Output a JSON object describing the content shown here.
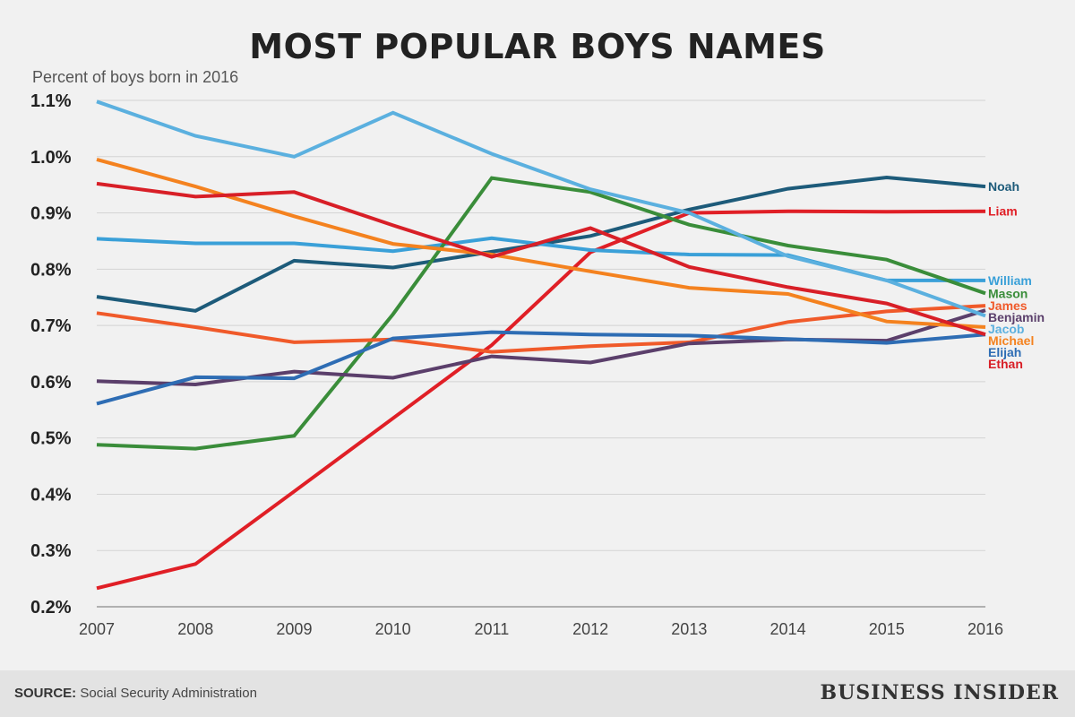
{
  "title": "MOST POPULAR BOYS NAMES",
  "subtitle": "Percent of boys born in 2016",
  "footer": {
    "source_label": "SOURCE:",
    "source_text": "Social Security Administration",
    "brand": "BUSINESS INSIDER"
  },
  "chart_data": {
    "type": "line",
    "title": "MOST POPULAR BOYS NAMES",
    "ylabel": "Percent of boys born in 2016",
    "x": [
      "2007",
      "2008",
      "2009",
      "2010",
      "2011",
      "2012",
      "2013",
      "2014",
      "2015",
      "2016"
    ],
    "ylim": [
      0.2,
      1.1
    ],
    "yticks": [
      0.2,
      0.3,
      0.4,
      0.5,
      0.6,
      0.7,
      0.8,
      0.9,
      1.0,
      1.1
    ],
    "ytick_labels": [
      "0.2%",
      "0.3%",
      "0.4%",
      "0.5%",
      "0.6%",
      "0.7%",
      "0.8%",
      "0.9%",
      "1.0%",
      "1.1%"
    ],
    "grid": "horizontal",
    "legend": "direct labels at right end of lines",
    "series": [
      {
        "name": "Noah",
        "color": "#1d5b7a",
        "values": [
          0.751,
          0.726,
          0.815,
          0.803,
          0.831,
          0.859,
          0.906,
          0.943,
          0.963,
          0.947
        ]
      },
      {
        "name": "Liam",
        "color": "#e01f26",
        "values": [
          0.233,
          0.276,
          0.405,
          0.535,
          0.665,
          0.83,
          0.9,
          0.903,
          0.902,
          0.903
        ]
      },
      {
        "name": "William",
        "color": "#3aa0d8",
        "values": [
          0.854,
          0.846,
          0.846,
          0.832,
          0.855,
          0.834,
          0.826,
          0.825,
          0.78,
          0.78
        ]
      },
      {
        "name": "Mason",
        "color": "#3a8d3a",
        "values": [
          0.488,
          0.481,
          0.504,
          0.72,
          0.962,
          0.937,
          0.879,
          0.842,
          0.817,
          0.757
        ]
      },
      {
        "name": "James",
        "color": "#f05a2a",
        "values": [
          0.722,
          0.697,
          0.67,
          0.675,
          0.653,
          0.663,
          0.67,
          0.706,
          0.725,
          0.735
        ]
      },
      {
        "name": "Benjamin",
        "color": "#5b3f6b",
        "values": [
          0.601,
          0.595,
          0.618,
          0.607,
          0.645,
          0.634,
          0.668,
          0.675,
          0.673,
          0.727
        ]
      },
      {
        "name": "Jacob",
        "color": "#5bb0df",
        "values": [
          1.098,
          1.037,
          1.0,
          1.078,
          1.005,
          0.942,
          0.9,
          0.823,
          0.78,
          0.717
        ]
      },
      {
        "name": "Michael",
        "color": "#f4821f",
        "values": [
          0.995,
          0.947,
          0.894,
          0.845,
          0.826,
          0.796,
          0.767,
          0.756,
          0.707,
          0.697
        ]
      },
      {
        "name": "Elijah",
        "color": "#2e6db4",
        "values": [
          0.561,
          0.608,
          0.606,
          0.677,
          0.688,
          0.684,
          0.682,
          0.676,
          0.669,
          0.684
        ]
      },
      {
        "name": "Ethan",
        "color": "#d81f27",
        "values": [
          0.952,
          0.929,
          0.937,
          0.878,
          0.822,
          0.873,
          0.804,
          0.768,
          0.739,
          0.684
        ]
      }
    ]
  }
}
